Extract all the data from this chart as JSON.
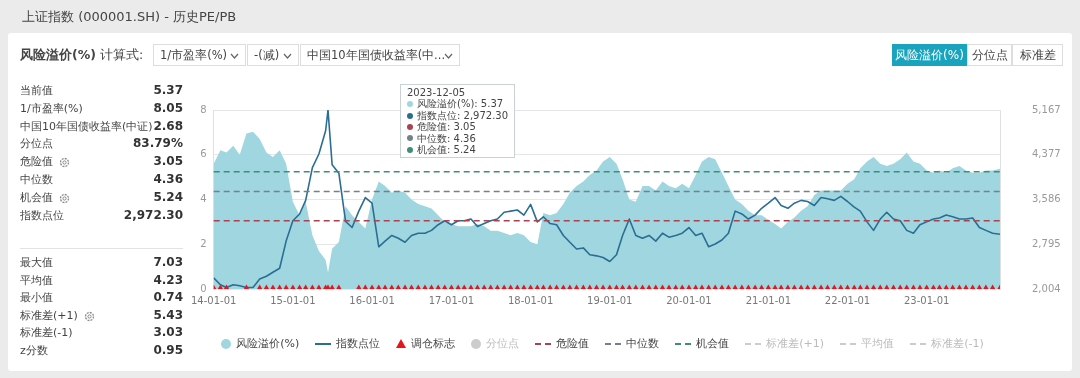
{
  "chart_data": [
    {
      "type": "other",
      "title": "上证指数 (000001.SH) - 历史PE/PB",
      "annotations": [
        "风险溢价(%)",
        "计算式:",
        "1/市盈率(%)",
        "-(减)",
        "中国10年国债收益率(中...",
        "风险溢价(%)",
        "分位点",
        "标准差",
        "当前值",
        "5.37",
        "1/市盈率(%)",
        "8.05",
        "中国10年国债收益率(中证)",
        "2.68",
        "分位点",
        "83.79%",
        "危险值",
        "3.05",
        "中位数",
        "4.36",
        "机会值",
        "5.24",
        "指数点位",
        "2,972.30",
        "最大值",
        "7.03",
        "平均值",
        "4.23",
        "最小值",
        "0.74",
        "标准差(+1)",
        "5.43",
        "标准差(-1)",
        "3.03",
        "z分数",
        "0.95"
      ]
    },
    {
      "type": "area",
      "x": [
        "2014-01",
        "2014-02",
        "2014-03",
        "2014-04",
        "2014-05",
        "2014-06",
        "2014-07",
        "2014-08",
        "2014-09",
        "2014-10",
        "2014-11",
        "2014-12",
        "2015-01",
        "2015-02",
        "2015-03",
        "2015-04",
        "2015-05",
        "2015-06",
        "2015-06-12",
        "2015-07",
        "2015-08",
        "2015-09",
        "2015-10",
        "2015-11",
        "2015-12",
        "2016-01",
        "2016-02",
        "2016-03",
        "2016-04",
        "2016-05",
        "2016-06",
        "2016-07",
        "2016-08",
        "2016-09",
        "2016-10",
        "2016-11",
        "2016-12",
        "2017-01",
        "2017-02",
        "2017-03",
        "2017-04",
        "2017-05",
        "2017-06",
        "2017-07",
        "2017-08",
        "2017-09",
        "2017-10",
        "2017-11",
        "2017-12",
        "2018-01",
        "2018-02",
        "2018-03",
        "2018-04",
        "2018-05",
        "2018-06",
        "2018-07",
        "2018-08",
        "2018-09",
        "2018-10",
        "2018-11",
        "2018-12",
        "2019-01",
        "2019-02",
        "2019-03",
        "2019-04",
        "2019-05",
        "2019-06",
        "2019-07",
        "2019-08",
        "2019-09",
        "2019-10",
        "2019-11",
        "2019-12",
        "2020-01",
        "2020-02",
        "2020-03",
        "2020-04",
        "2020-05",
        "2020-06",
        "2020-07",
        "2020-08",
        "2020-09",
        "2020-10",
        "2020-11",
        "2020-12",
        "2021-01",
        "2021-02",
        "2021-03",
        "2021-04",
        "2021-05",
        "2021-06",
        "2021-07",
        "2021-08",
        "2021-09",
        "2021-10",
        "2021-11",
        "2021-12",
        "2022-01",
        "2022-02",
        "2022-03",
        "2022-04",
        "2022-05",
        "2022-06",
        "2022-07",
        "2022-08",
        "2022-09",
        "2022-10",
        "2022-11",
        "2022-12",
        "2023-01",
        "2023-02",
        "2023-03",
        "2023-04",
        "2023-05",
        "2023-06",
        "2023-07",
        "2023-08",
        "2023-09",
        "2023-10",
        "2023-11",
        "2023-12-05"
      ],
      "xlim": [
        "2014-01-01",
        "2023-12-05"
      ],
      "xticks": [
        {
          "value": "2014-01-01",
          "label": "14-01-01"
        },
        {
          "value": "2015-01-01",
          "label": "15-01-01"
        },
        {
          "value": "2016-01-01",
          "label": "16-01-01"
        },
        {
          "value": "2017-01-01",
          "label": "17-01-01"
        },
        {
          "value": "2018-01-01",
          "label": "18-01-01"
        },
        {
          "value": "2019-01-01",
          "label": "19-01-01"
        },
        {
          "value": "2020-01-01",
          "label": "20-01-01"
        },
        {
          "value": "2021-01-01",
          "label": "21-01-01"
        },
        {
          "value": "2022-01-01",
          "label": "22-01-01"
        },
        {
          "value": "2023-01-01",
          "label": "23-01-01"
        }
      ],
      "ylim": [
        0,
        8
      ],
      "yticks": [
        0,
        2,
        4,
        6,
        8
      ],
      "y2lim": [
        2004,
        5167
      ],
      "y2ticks": [
        {
          "value": 2004,
          "label": "2,004"
        },
        {
          "value": 2795,
          "label": "2,795"
        },
        {
          "value": 3586,
          "label": "3,586"
        },
        {
          "value": 4377,
          "label": "4,377"
        },
        {
          "value": 5167,
          "label": "5,167"
        }
      ],
      "grid": "y",
      "legend": "bottom",
      "series": [
        {
          "name": "风险溢价(%)",
          "type": "area",
          "color": "#9fd6df",
          "values": [
            5.6,
            6.2,
            6.1,
            6.4,
            6.0,
            6.95,
            7.03,
            6.7,
            6.1,
            5.9,
            6.2,
            5.6,
            3.9,
            3.3,
            3.9,
            2.4,
            1.7,
            1.3,
            0.74,
            1.8,
            2.1,
            3.7,
            3.3,
            3.0,
            2.7,
            4.0,
            4.8,
            4.6,
            4.3,
            4.4,
            4.3,
            4.0,
            3.8,
            3.7,
            3.6,
            3.3,
            3.0,
            2.9,
            2.8,
            2.8,
            2.8,
            2.9,
            2.8,
            2.6,
            2.6,
            2.5,
            2.4,
            2.5,
            2.4,
            2.1,
            2.0,
            3.4,
            3.3,
            3.4,
            3.8,
            4.3,
            4.6,
            4.8,
            5.1,
            5.3,
            5.7,
            5.9,
            5.6,
            4.9,
            4.0,
            3.9,
            4.6,
            4.6,
            4.4,
            4.8,
            4.6,
            4.5,
            4.7,
            4.5,
            5.1,
            5.7,
            5.9,
            5.8,
            5.2,
            4.6,
            4.0,
            3.8,
            3.5,
            3.3,
            3.3,
            3.1,
            2.9,
            2.7,
            3.0,
            3.2,
            3.5,
            3.7,
            4.2,
            4.4,
            4.4,
            4.4,
            4.4,
            4.7,
            4.9,
            5.4,
            5.7,
            5.9,
            5.6,
            5.5,
            5.6,
            5.8,
            6.1,
            5.7,
            5.6,
            5.3,
            5.2,
            5.3,
            5.2,
            5.4,
            5.5,
            5.3,
            5.2,
            5.2,
            5.3,
            5.3,
            5.37
          ]
        },
        {
          "name": "指数点位",
          "type": "line",
          "axis": "y2",
          "color": "#2a6e93",
          "values": [
            2200,
            2080,
            2030,
            2080,
            2060,
            2030,
            2030,
            2180,
            2230,
            2300,
            2370,
            2850,
            3210,
            3330,
            3570,
            4150,
            4390,
            4800,
            5167,
            4200,
            4050,
            3200,
            3090,
            3380,
            3620,
            3520,
            2750,
            2850,
            2950,
            2900,
            2830,
            2950,
            2990,
            2990,
            3040,
            3140,
            3210,
            3140,
            3210,
            3210,
            3240,
            3110,
            3160,
            3210,
            3240,
            3360,
            3380,
            3400,
            3310,
            3500,
            3190,
            3280,
            3160,
            3140,
            2950,
            2830,
            2710,
            2730,
            2610,
            2590,
            2560,
            2490,
            2610,
            2950,
            3240,
            2950,
            2900,
            2950,
            2850,
            2990,
            2920,
            2950,
            2990,
            3090,
            2950,
            2990,
            2750,
            2800,
            2870,
            2990,
            3380,
            3330,
            3240,
            3310,
            3430,
            3520,
            3620,
            3480,
            3430,
            3520,
            3570,
            3550,
            3480,
            3620,
            3600,
            3570,
            3640,
            3550,
            3450,
            3380,
            3190,
            3040,
            3240,
            3360,
            3240,
            3210,
            3040,
            2990,
            3140,
            3190,
            3240,
            3260,
            3310,
            3280,
            3240,
            3240,
            3260,
            3090,
            3040,
            2990,
            2972.3
          ]
        },
        {
          "name": "调仓标志",
          "type": "scatter",
          "marker": "triangle",
          "color": "#e8141c",
          "values": [
            0,
            0,
            0,
            null,
            null,
            0,
            null,
            0,
            0,
            0,
            0,
            0,
            0,
            0,
            0,
            0,
            0,
            0,
            0,
            0,
            0,
            null,
            null,
            0,
            0,
            0,
            0,
            0,
            0,
            0,
            0,
            0,
            0,
            0,
            0,
            0,
            0,
            0,
            0,
            0,
            0,
            0,
            0,
            0,
            0,
            0,
            0,
            0,
            0,
            0,
            0,
            0,
            0,
            0,
            0,
            0,
            0,
            0,
            0,
            0,
            0,
            0,
            0,
            0,
            0,
            0,
            0,
            0,
            0,
            0,
            0,
            0,
            0,
            0,
            0,
            0,
            0,
            0,
            0,
            0,
            0,
            0,
            0,
            0,
            0,
            0,
            0,
            0,
            0,
            0,
            0,
            0,
            0,
            0,
            0,
            0,
            0,
            0,
            0,
            0,
            0,
            0,
            0,
            0,
            0,
            0,
            0,
            0,
            0,
            0,
            0,
            0,
            0,
            0,
            0,
            0,
            0,
            0,
            0,
            0,
            0
          ]
        },
        {
          "name": "分位点",
          "type": "scatter",
          "marker": "circle",
          "color": "#cccccc",
          "values": [
            null,
            null,
            null,
            null,
            null,
            null,
            null,
            null,
            null,
            null,
            null,
            null,
            null,
            null,
            null,
            null,
            null,
            null,
            null,
            null,
            null,
            null,
            null,
            null,
            null,
            null,
            null,
            null,
            null,
            null,
            null,
            null,
            null,
            null,
            null,
            null,
            null,
            null,
            null,
            null,
            null,
            null,
            null,
            null,
            null,
            null,
            null,
            null,
            null,
            null,
            null,
            null,
            null,
            null,
            null,
            null,
            null,
            null,
            null,
            null,
            null,
            null,
            null,
            null,
            null,
            null,
            null,
            null,
            null,
            null,
            null,
            null,
            null,
            null,
            null,
            null,
            null,
            null,
            null,
            null,
            null,
            null,
            null,
            null,
            null,
            null,
            null,
            null,
            null,
            null,
            null,
            null,
            null,
            null,
            null,
            null,
            null,
            null,
            null,
            null,
            null,
            null,
            null,
            null,
            null,
            null,
            null,
            null,
            null,
            null,
            null,
            null,
            null,
            null,
            null,
            null,
            null,
            null,
            null,
            null,
            null
          ]
        },
        {
          "name": "标准差(+1)",
          "type": "line",
          "line_style": "dashed",
          "color": "#cccccc",
          "values": [
            null,
            null,
            null,
            null,
            null,
            null,
            null,
            null,
            null,
            null,
            null,
            null,
            null,
            null,
            null,
            null,
            null,
            null,
            null,
            null,
            null,
            null,
            null,
            null,
            null,
            null,
            null,
            null,
            null,
            null,
            null,
            null,
            null,
            null,
            null,
            null,
            null,
            null,
            null,
            null,
            null,
            null,
            null,
            null,
            null,
            null,
            null,
            null,
            null,
            null,
            null,
            null,
            null,
            null,
            null,
            null,
            null,
            null,
            null,
            null,
            null,
            null,
            null,
            null,
            null,
            null,
            null,
            null,
            null,
            null,
            null,
            null,
            null,
            null,
            null,
            null,
            null,
            null,
            null,
            null,
            null,
            null,
            null,
            null,
            null,
            null,
            null,
            null,
            null,
            null,
            null,
            null,
            null,
            null,
            null,
            null,
            null,
            null,
            null,
            null,
            null,
            null,
            null,
            null,
            null,
            null,
            null,
            null,
            null,
            null,
            null,
            null,
            null,
            null,
            null,
            null,
            null,
            null,
            null,
            null,
            null
          ]
        },
        {
          "name": "平均值",
          "type": "line",
          "line_style": "dashed",
          "color": "#cccccc",
          "values": [
            null,
            null,
            null,
            null,
            null,
            null,
            null,
            null,
            null,
            null,
            null,
            null,
            null,
            null,
            null,
            null,
            null,
            null,
            null,
            null,
            null,
            null,
            null,
            null,
            null,
            null,
            null,
            null,
            null,
            null,
            null,
            null,
            null,
            null,
            null,
            null,
            null,
            null,
            null,
            null,
            null,
            null,
            null,
            null,
            null,
            null,
            null,
            null,
            null,
            null,
            null,
            null,
            null,
            null,
            null,
            null,
            null,
            null,
            null,
            null,
            null,
            null,
            null,
            null,
            null,
            null,
            null,
            null,
            null,
            null,
            null,
            null,
            null,
            null,
            null,
            null,
            null,
            null,
            null,
            null,
            null,
            null,
            null,
            null,
            null,
            null,
            null,
            null,
            null,
            null,
            null,
            null,
            null,
            null,
            null,
            null,
            null,
            null,
            null,
            null,
            null,
            null,
            null,
            null,
            null,
            null,
            null,
            null,
            null,
            null,
            null,
            null,
            null,
            null,
            null,
            null,
            null,
            null,
            null,
            null,
            null
          ]
        },
        {
          "name": "标准差(-1)",
          "type": "line",
          "line_style": "dashed",
          "color": "#cccccc",
          "values": [
            null,
            null,
            null,
            null,
            null,
            null,
            null,
            null,
            null,
            null,
            null,
            null,
            null,
            null,
            null,
            null,
            null,
            null,
            null,
            null,
            null,
            null,
            null,
            null,
            null,
            null,
            null,
            null,
            null,
            null,
            null,
            null,
            null,
            null,
            null,
            null,
            null,
            null,
            null,
            null,
            null,
            null,
            null,
            null,
            null,
            null,
            null,
            null,
            null,
            null,
            null,
            null,
            null,
            null,
            null,
            null,
            null,
            null,
            null,
            null,
            null,
            null,
            null,
            null,
            null,
            null,
            null,
            null,
            null,
            null,
            null,
            null,
            null,
            null,
            null,
            null,
            null,
            null,
            null,
            null,
            null,
            null,
            null,
            null,
            null,
            null,
            null,
            null,
            null,
            null,
            null,
            null,
            null,
            null,
            null,
            null,
            null,
            null,
            null,
            null,
            null,
            null,
            null,
            null,
            null,
            null,
            null,
            null,
            null,
            null,
            null,
            null,
            null,
            null,
            null,
            null,
            null,
            null,
            null,
            null,
            null
          ]
        }
      ],
      "ref_lines": [
        {
          "axis": "y",
          "value": 3.05,
          "label": "危险值",
          "color": "#a8434f",
          "line_style": "dashed"
        },
        {
          "axis": "y",
          "value": 4.36,
          "label": "中位数",
          "color": "#75808a",
          "line_style": "dashed"
        },
        {
          "axis": "y",
          "value": 5.24,
          "label": "机会值",
          "color": "#3f8f78",
          "line_style": "dashed"
        }
      ],
      "annotations": [
        "2023-12-05",
        "风险溢价(%): 5.37",
        "指数点位: 2,972.30",
        "危险值: 3.05",
        "中位数: 4.36",
        "机会值: 5.24"
      ]
    }
  ]
}
